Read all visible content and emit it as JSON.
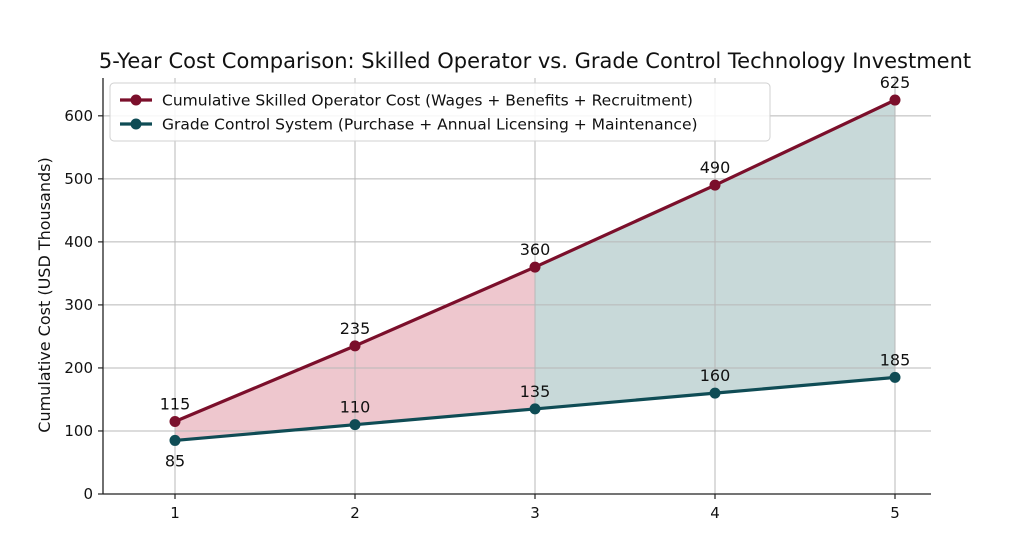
{
  "chart_data": {
    "type": "line",
    "title": "5-Year Cost Comparison: Skilled Operator vs. Grade Control Technology Investment",
    "xlabel": "",
    "ylabel": "Cumulative Cost (USD Thousands)",
    "x": [
      1,
      2,
      3,
      4,
      5
    ],
    "xlim": [
      0.6,
      5.2
    ],
    "ylim": [
      0,
      660
    ],
    "yticks": [
      0,
      100,
      200,
      300,
      400,
      500,
      600
    ],
    "grid": true,
    "legend_position": "top-left",
    "series": [
      {
        "name": "Cumulative Skilled Operator Cost (Wages + Benefits + Recruitment)",
        "values": [
          115,
          235,
          360,
          490,
          625
        ],
        "labels": [
          "115",
          "235",
          "360",
          "490",
          "625"
        ],
        "color": "#7b0f2b"
      },
      {
        "name": "Grade Control System (Purchase + Annual Licensing + Maintenance)",
        "values": [
          85,
          110,
          135,
          160,
          185
        ],
        "labels": [
          "85",
          "110",
          "135",
          "160",
          "185"
        ],
        "color": "#0f4c55"
      }
    ],
    "fill_between": [
      {
        "x_from": 1,
        "x_to": 3,
        "color": "#e8b4bd"
      },
      {
        "x_from": 3,
        "x_to": 5,
        "color": "#b6cccc"
      }
    ]
  }
}
